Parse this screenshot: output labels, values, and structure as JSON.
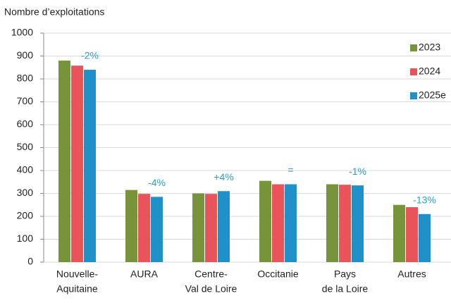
{
  "chart_data": {
    "type": "bar",
    "title": "Nombre d’exploitations",
    "categories": [
      [
        "Nouvelle-",
        "Aquitaine"
      ],
      [
        "AURA"
      ],
      [
        "Centre-",
        "Val de Loire"
      ],
      [
        "Occitanie"
      ],
      [
        "Pays",
        "de la Loire"
      ],
      [
        "Autres"
      ]
    ],
    "series": [
      {
        "name": "2023",
        "color": "#77943a",
        "values": [
          880,
          315,
          300,
          355,
          340,
          250
        ]
      },
      {
        "name": "2024",
        "color": "#e8545a",
        "values": [
          858,
          298,
          298,
          340,
          338,
          240
        ]
      },
      {
        "name": "2025e",
        "color": "#1f90c8",
        "values": [
          840,
          285,
          310,
          340,
          335,
          210
        ]
      }
    ],
    "annotations": [
      "-2%",
      "-4%",
      "+4%",
      "=",
      "-1%",
      "-13%"
    ],
    "ylim": [
      0,
      1000
    ],
    "yticks": [
      0,
      100,
      200,
      300,
      400,
      500,
      600,
      700,
      800,
      900,
      1000
    ],
    "grid": true,
    "legend": "upper right"
  }
}
